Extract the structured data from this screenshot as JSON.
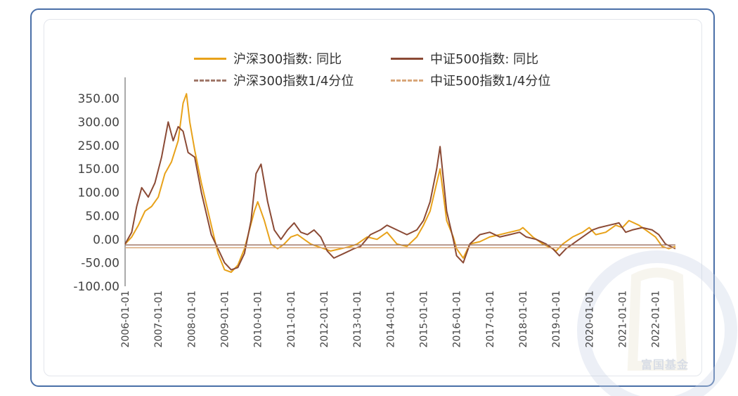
{
  "legend": {
    "items": [
      {
        "label": "沪深300指数: 同比",
        "style": "solid",
        "color": "#e8a21a"
      },
      {
        "label": "中证500指数: 同比",
        "style": "solid",
        "color": "#8b4a35"
      },
      {
        "label": "沪深300指数1/4分位",
        "style": "dashed",
        "color": "#a0786a"
      },
      {
        "label": "中证500指数1/4分位",
        "style": "dashed",
        "color": "#d9a77a"
      }
    ]
  },
  "watermark": {
    "text": "富国基金"
  },
  "chart_data": {
    "type": "line",
    "title": "",
    "xlabel": "",
    "ylabel": "",
    "ylim": [
      -100,
      350
    ],
    "y_ticks": [
      "350.00",
      "300.00",
      "250.00",
      "150.00",
      "100.00",
      "50.00",
      "0.00",
      "-50.00",
      "-100.00"
    ],
    "x_ticks": [
      "2006-01-01",
      "2007-01-01",
      "2008-01-01",
      "2009-01-01",
      "2010-01-01",
      "2011-01-01",
      "2012-01-01",
      "2013-01-01",
      "2014-01-01",
      "2015-01-01",
      "2016-01-01",
      "2017-01-01",
      "2018-01-01",
      "2019-01-01",
      "2020-01-01",
      "2021-01-01",
      "2022-01-01"
    ],
    "series": [
      {
        "name": "沪深300指数: 同比",
        "color": "#e8a21a",
        "x": [
          2006.0,
          2006.2,
          2006.4,
          2006.6,
          2006.8,
          2007.0,
          2007.2,
          2007.4,
          2007.6,
          2007.75,
          2007.85,
          2007.95,
          2008.1,
          2008.3,
          2008.6,
          2008.8,
          2009.0,
          2009.2,
          2009.4,
          2009.6,
          2009.75,
          2009.9,
          2010.0,
          2010.2,
          2010.4,
          2010.6,
          2010.8,
          2011.0,
          2011.2,
          2011.4,
          2011.6,
          2011.8,
          2012.0,
          2012.2,
          2012.5,
          2012.8,
          2013.0,
          2013.3,
          2013.6,
          2013.9,
          2014.2,
          2014.5,
          2014.8,
          2015.0,
          2015.2,
          2015.4,
          2015.5,
          2015.7,
          2015.9,
          2016.0,
          2016.2,
          2016.4,
          2016.7,
          2017.0,
          2017.3,
          2017.6,
          2017.9,
          2018.0,
          2018.3,
          2018.6,
          2018.9,
          2019.0,
          2019.2,
          2019.5,
          2019.8,
          2020.0,
          2020.2,
          2020.5,
          2020.8,
          2021.0,
          2021.2,
          2021.5,
          2021.8,
          2022.0,
          2022.2,
          2022.4,
          2022.6
        ],
        "values": [
          -10,
          5,
          30,
          60,
          70,
          90,
          140,
          180,
          260,
          340,
          360,
          300,
          230,
          120,
          30,
          -30,
          -65,
          -70,
          -55,
          -20,
          20,
          60,
          80,
          40,
          -10,
          -20,
          -10,
          5,
          10,
          0,
          -10,
          -15,
          -20,
          -25,
          -20,
          -15,
          -10,
          5,
          0,
          15,
          -10,
          -15,
          5,
          30,
          60,
          120,
          150,
          40,
          5,
          -20,
          -40,
          -10,
          -5,
          5,
          10,
          15,
          20,
          25,
          5,
          -10,
          -20,
          -25,
          -10,
          5,
          15,
          25,
          10,
          15,
          30,
          25,
          40,
          30,
          15,
          5,
          -15,
          -20,
          -15
        ]
      },
      {
        "name": "中证500指数: 同比",
        "color": "#8b4a35",
        "x": [
          2006.0,
          2006.2,
          2006.35,
          2006.5,
          2006.7,
          2006.9,
          2007.1,
          2007.3,
          2007.45,
          2007.6,
          2007.75,
          2007.9,
          2008.1,
          2008.3,
          2008.6,
          2008.8,
          2009.0,
          2009.2,
          2009.4,
          2009.6,
          2009.8,
          2009.95,
          2010.1,
          2010.3,
          2010.5,
          2010.7,
          2010.9,
          2011.1,
          2011.3,
          2011.5,
          2011.7,
          2011.9,
          2012.1,
          2012.3,
          2012.6,
          2012.9,
          2013.1,
          2013.4,
          2013.7,
          2013.9,
          2014.2,
          2014.5,
          2014.8,
          2015.0,
          2015.2,
          2015.4,
          2015.5,
          2015.7,
          2015.9,
          2016.0,
          2016.2,
          2016.4,
          2016.7,
          2017.0,
          2017.3,
          2017.6,
          2017.9,
          2018.1,
          2018.4,
          2018.7,
          2018.9,
          2019.1,
          2019.3,
          2019.6,
          2019.9,
          2020.1,
          2020.3,
          2020.6,
          2020.9,
          2021.1,
          2021.3,
          2021.6,
          2021.9,
          2022.1,
          2022.3,
          2022.6
        ],
        "values": [
          -10,
          15,
          70,
          110,
          90,
          120,
          200,
          300,
          260,
          290,
          280,
          220,
          200,
          100,
          10,
          -20,
          -50,
          -65,
          -60,
          -30,
          40,
          140,
          170,
          80,
          20,
          0,
          20,
          35,
          15,
          10,
          20,
          5,
          -25,
          -40,
          -30,
          -20,
          -15,
          10,
          20,
          30,
          20,
          10,
          20,
          40,
          80,
          150,
          245,
          60,
          0,
          -35,
          -50,
          -10,
          10,
          15,
          5,
          10,
          15,
          5,
          0,
          -10,
          -20,
          -35,
          -20,
          -5,
          10,
          20,
          25,
          30,
          35,
          15,
          20,
          25,
          20,
          10,
          -10,
          -20
        ]
      },
      {
        "name": "沪深300指数1/4分位",
        "color": "#a0786a",
        "style": "dashed",
        "x": [
          2006.0,
          2022.6
        ],
        "values": [
          -12,
          -12
        ]
      },
      {
        "name": "中证500指数1/4分位",
        "color": "#d9a77a",
        "style": "dashed",
        "x": [
          2006.0,
          2022.6
        ],
        "values": [
          -18,
          -18
        ]
      }
    ]
  }
}
